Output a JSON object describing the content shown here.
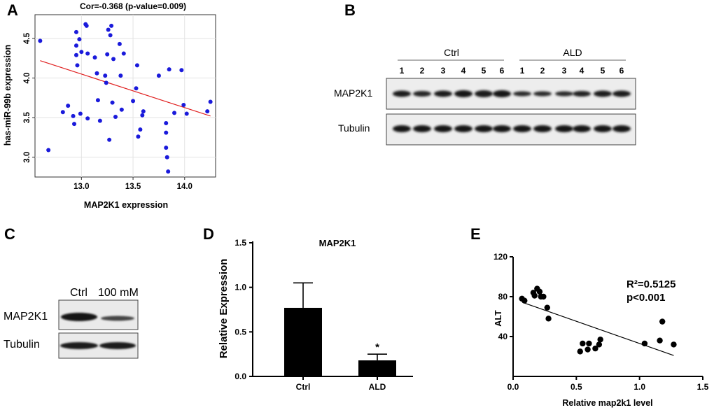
{
  "panels": {
    "A": "A",
    "B": "B",
    "C": "C",
    "D": "D",
    "E": "E"
  },
  "chart_data": [
    {
      "panel": "A",
      "type": "scatter",
      "title": "Cor=-0.368 (p-value=0.009)",
      "xlabel": "MAP2K1 expression",
      "ylabel": "has-miR-99b expression",
      "xlim": [
        12.55,
        14.3
      ],
      "ylim": [
        2.75,
        4.8
      ],
      "xticks": [
        "13.0",
        "13.5",
        "14.0"
      ],
      "yticks": [
        "3.0",
        "3.5",
        "4.0",
        "4.5"
      ],
      "point_color": "#1a1adb",
      "line_color": "#e02020",
      "trend": {
        "x": [
          12.6,
          14.25
        ],
        "y": [
          4.22,
          3.52
        ]
      },
      "points": [
        {
          "x": 12.6,
          "y": 4.47
        },
        {
          "x": 12.68,
          "y": 3.09
        },
        {
          "x": 12.82,
          "y": 3.57
        },
        {
          "x": 12.87,
          "y": 3.65
        },
        {
          "x": 12.92,
          "y": 3.52
        },
        {
          "x": 12.93,
          "y": 3.42
        },
        {
          "x": 12.95,
          "y": 4.58
        },
        {
          "x": 12.95,
          "y": 4.41
        },
        {
          "x": 12.95,
          "y": 4.29
        },
        {
          "x": 12.96,
          "y": 4.16
        },
        {
          "x": 12.98,
          "y": 4.49
        },
        {
          "x": 13.0,
          "y": 4.33
        },
        {
          "x": 12.99,
          "y": 3.55
        },
        {
          "x": 13.04,
          "y": 4.68
        },
        {
          "x": 13.05,
          "y": 4.66
        },
        {
          "x": 13.06,
          "y": 4.31
        },
        {
          "x": 13.06,
          "y": 3.49
        },
        {
          "x": 13.13,
          "y": 4.26
        },
        {
          "x": 13.15,
          "y": 4.06
        },
        {
          "x": 13.16,
          "y": 3.72
        },
        {
          "x": 13.18,
          "y": 3.46
        },
        {
          "x": 13.23,
          "y": 4.03
        },
        {
          "x": 13.24,
          "y": 3.94
        },
        {
          "x": 13.25,
          "y": 4.3
        },
        {
          "x": 13.26,
          "y": 4.61
        },
        {
          "x": 13.27,
          "y": 3.22
        },
        {
          "x": 13.28,
          "y": 4.54
        },
        {
          "x": 13.29,
          "y": 4.66
        },
        {
          "x": 13.3,
          "y": 3.69
        },
        {
          "x": 13.31,
          "y": 4.24
        },
        {
          "x": 13.33,
          "y": 3.51
        },
        {
          "x": 13.37,
          "y": 4.43
        },
        {
          "x": 13.38,
          "y": 4.03
        },
        {
          "x": 13.39,
          "y": 3.6
        },
        {
          "x": 13.41,
          "y": 4.31
        },
        {
          "x": 13.5,
          "y": 3.71
        },
        {
          "x": 13.53,
          "y": 3.87
        },
        {
          "x": 13.54,
          "y": 4.16
        },
        {
          "x": 13.55,
          "y": 3.26
        },
        {
          "x": 13.57,
          "y": 3.35
        },
        {
          "x": 13.59,
          "y": 3.53
        },
        {
          "x": 13.6,
          "y": 3.58
        },
        {
          "x": 13.75,
          "y": 4.03
        },
        {
          "x": 13.82,
          "y": 3.43
        },
        {
          "x": 13.82,
          "y": 3.31
        },
        {
          "x": 13.82,
          "y": 3.12
        },
        {
          "x": 13.83,
          "y": 3.0
        },
        {
          "x": 13.84,
          "y": 2.82
        },
        {
          "x": 13.85,
          "y": 4.11
        },
        {
          "x": 13.9,
          "y": 3.56
        },
        {
          "x": 13.97,
          "y": 4.1
        },
        {
          "x": 13.99,
          "y": 3.66
        },
        {
          "x": 14.02,
          "y": 3.55
        },
        {
          "x": 14.22,
          "y": 3.58
        },
        {
          "x": 14.25,
          "y": 3.7
        }
      ]
    },
    {
      "panel": "D",
      "type": "bar",
      "title": "MAP2K1",
      "xlabel": "",
      "ylabel": "Relative Expression",
      "categories": [
        "Ctrl",
        "ALD"
      ],
      "values": [
        0.77,
        0.18
      ],
      "errors": [
        0.28,
        0.07
      ],
      "annotations": [
        "",
        "*"
      ],
      "ylim": [
        0,
        1.5
      ],
      "yticks": [
        "0.0",
        "0.5",
        "1.0",
        "1.5"
      ],
      "bar_color": "#000000"
    },
    {
      "panel": "E",
      "type": "scatter",
      "title": "",
      "xlabel": "Relative map2k1 level",
      "ylabel": "ALT",
      "xlim": [
        0,
        1.5
      ],
      "ylim": [
        0,
        120
      ],
      "xticks": [
        "0.0",
        "0.5",
        "1.0",
        "1.5"
      ],
      "yticks": [
        "40",
        "80",
        "120"
      ],
      "annotation_r2": "R²=0.5125",
      "annotation_p": "p<0.001",
      "point_color": "#000000",
      "trend": {
        "x": [
          0.08,
          1.27
        ],
        "y": [
          74,
          21
        ]
      },
      "points": [
        {
          "x": 0.07,
          "y": 78
        },
        {
          "x": 0.09,
          "y": 76
        },
        {
          "x": 0.16,
          "y": 84
        },
        {
          "x": 0.17,
          "y": 81
        },
        {
          "x": 0.19,
          "y": 88
        },
        {
          "x": 0.21,
          "y": 85
        },
        {
          "x": 0.22,
          "y": 80
        },
        {
          "x": 0.24,
          "y": 80
        },
        {
          "x": 0.27,
          "y": 69
        },
        {
          "x": 0.28,
          "y": 58
        },
        {
          "x": 0.53,
          "y": 25
        },
        {
          "x": 0.55,
          "y": 33
        },
        {
          "x": 0.59,
          "y": 27
        },
        {
          "x": 0.6,
          "y": 33
        },
        {
          "x": 0.65,
          "y": 28
        },
        {
          "x": 0.68,
          "y": 32
        },
        {
          "x": 0.69,
          "y": 37
        },
        {
          "x": 1.04,
          "y": 33
        },
        {
          "x": 1.16,
          "y": 36
        },
        {
          "x": 1.18,
          "y": 55
        },
        {
          "x": 1.27,
          "y": 32
        }
      ]
    }
  ],
  "blot_b": {
    "group1": "Ctrl",
    "group2": "ALD",
    "lanes": [
      "1",
      "2",
      "3",
      "4",
      "5",
      "6",
      "1",
      "2",
      "3",
      "4",
      "5",
      "6"
    ],
    "row1_label": "MAP2K1",
    "row2_label": "Tubulin"
  },
  "blot_c": {
    "lane1": "Ctrl",
    "lane2": "100 mM",
    "row1_label": "MAP2K1",
    "row2_label": "Tubulin"
  }
}
